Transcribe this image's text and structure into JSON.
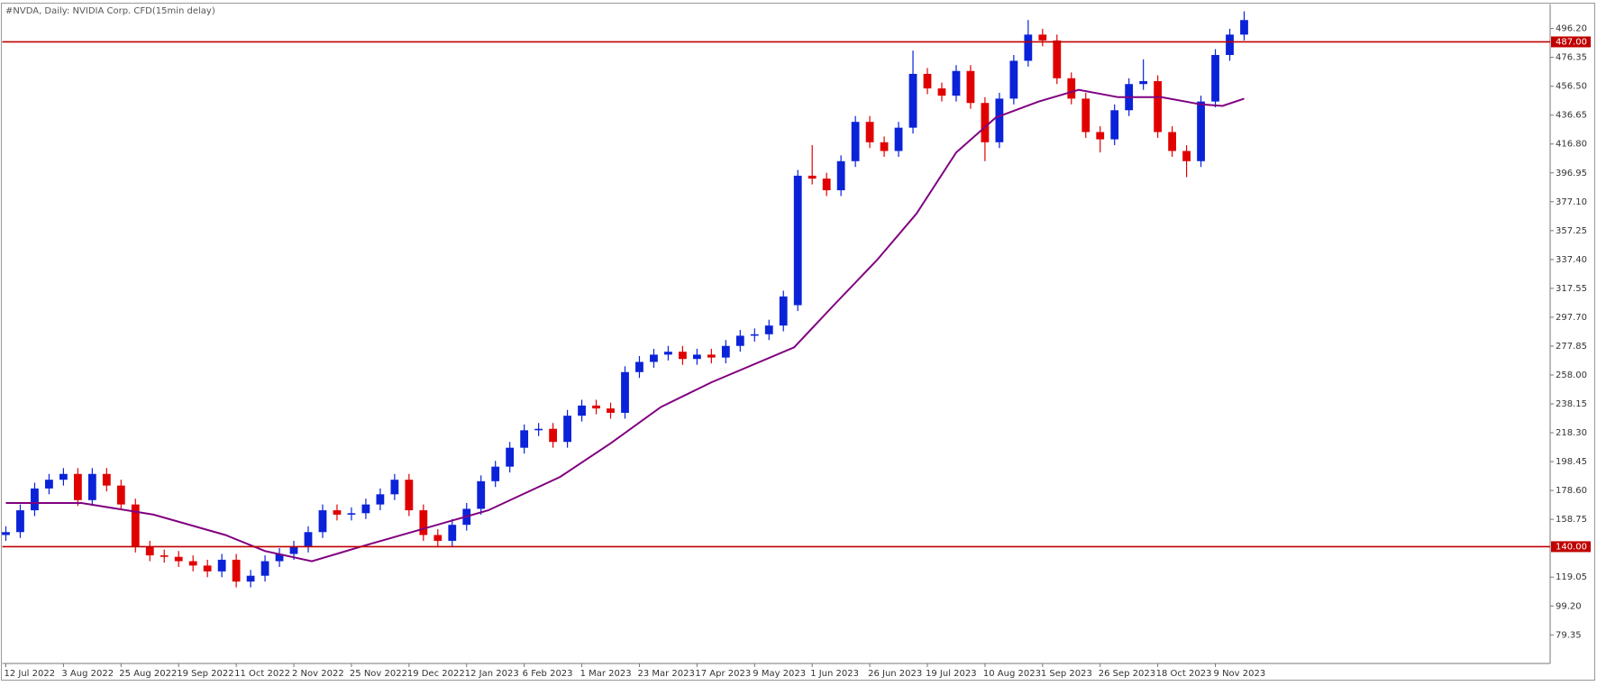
{
  "chart_data": {
    "type": "candlestick",
    "title": "#NVDA, Daily:  NVIDIA Corp. CFD(15min delay)",
    "up_color": "#0a22d8",
    "down_color": "#e00000",
    "xlim": [
      -1,
      429
    ],
    "ylim": [
      59.7,
      513.0
    ],
    "xticks": [
      {
        "value": 0,
        "label": "12 Jul 2022"
      },
      {
        "value": 16,
        "label": "3 Aug 2022"
      },
      {
        "value": 32,
        "label": "25 Aug 2022"
      },
      {
        "value": 48,
        "label": "19 Sep 2022"
      },
      {
        "value": 64,
        "label": "11 Oct 2022"
      },
      {
        "value": 80,
        "label": "2 Nov 2022"
      },
      {
        "value": 96,
        "label": "25 Nov 2022"
      },
      {
        "value": 112,
        "label": "19 Dec 2022"
      },
      {
        "value": 128,
        "label": "12 Jan 2023"
      },
      {
        "value": 144,
        "label": "6 Feb 2023"
      },
      {
        "value": 160,
        "label": "1 Mar 2023"
      },
      {
        "value": 176,
        "label": "23 Mar 2023"
      },
      {
        "value": 192,
        "label": "17 Apr 2023"
      },
      {
        "value": 208,
        "label": "9 May 2023"
      },
      {
        "value": 224,
        "label": "1 Jun 2023"
      },
      {
        "value": 240,
        "label": "26 Jun 2023"
      },
      {
        "value": 256,
        "label": "19 Jul 2023"
      },
      {
        "value": 272,
        "label": "10 Aug 2023"
      },
      {
        "value": 288,
        "label": "1 Sep 2023"
      },
      {
        "value": 304,
        "label": "26 Sep 2023"
      },
      {
        "value": 320,
        "label": "18 Oct 2023"
      },
      {
        "value": 336,
        "label": "9 Nov 2023"
      }
    ],
    "yticks": [
      {
        "value": 496.2,
        "label": "496.20"
      },
      {
        "value": 476.35,
        "label": "476.35"
      },
      {
        "value": 456.5,
        "label": "456.50"
      },
      {
        "value": 436.65,
        "label": "436.65"
      },
      {
        "value": 416.8,
        "label": "416.80"
      },
      {
        "value": 396.95,
        "label": "396.95"
      },
      {
        "value": 377.1,
        "label": "377.10"
      },
      {
        "value": 357.25,
        "label": "357.25"
      },
      {
        "value": 337.4,
        "label": "337.40"
      },
      {
        "value": 317.55,
        "label": "317.55"
      },
      {
        "value": 297.7,
        "label": "297.70"
      },
      {
        "value": 277.85,
        "label": "277.85"
      },
      {
        "value": 258.0,
        "label": "258.00"
      },
      {
        "value": 238.15,
        "label": "238.15"
      },
      {
        "value": 218.3,
        "label": "218.30"
      },
      {
        "value": 198.45,
        "label": "198.45"
      },
      {
        "value": 178.6,
        "label": "178.60"
      },
      {
        "value": 158.75,
        "label": "158.75"
      },
      {
        "value": 119.05,
        "label": "119.05"
      },
      {
        "value": 99.2,
        "label": "99.20"
      },
      {
        "value": 79.35,
        "label": "79.35"
      }
    ],
    "levels": [
      {
        "value": 487,
        "label": "487.00",
        "color": "#c00000"
      },
      {
        "value": 140,
        "label": "140.00",
        "color": "#c00000"
      }
    ],
    "x": [
      0,
      4,
      8,
      12,
      16,
      20,
      24,
      28,
      32,
      36,
      40,
      44,
      48,
      52,
      56,
      60,
      64,
      68,
      72,
      76,
      80,
      84,
      88,
      92,
      96,
      100,
      104,
      108,
      112,
      116,
      120,
      124,
      128,
      132,
      136,
      140,
      144,
      148,
      152,
      156,
      160,
      164,
      168,
      172,
      176,
      180,
      184,
      188,
      192,
      196,
      200,
      204,
      208,
      212,
      216,
      220,
      224,
      228,
      232,
      236,
      240,
      244,
      248,
      252,
      256,
      260,
      264,
      268,
      272,
      276,
      280,
      284,
      288,
      292,
      296,
      300,
      304,
      308,
      312,
      316,
      320,
      324,
      328,
      332,
      336,
      340,
      344
    ],
    "open": [
      148,
      150,
      165,
      180,
      186,
      190,
      172,
      190,
      182,
      169,
      140,
      134,
      133,
      130,
      127,
      123,
      131,
      116,
      120,
      130,
      135,
      140,
      150,
      165,
      162,
      163,
      169,
      176,
      186,
      165,
      148,
      144,
      155,
      166,
      185,
      195,
      208,
      220,
      221,
      212,
      230,
      237,
      235,
      232,
      260,
      267,
      272,
      274,
      269,
      272,
      270,
      278,
      285,
      286,
      292,
      306,
      395,
      393,
      385,
      405,
      432,
      418,
      412,
      428,
      465,
      455,
      450,
      467,
      445,
      418,
      448,
      474,
      492,
      488,
      462,
      448,
      425,
      420,
      440,
      458,
      460,
      425,
      412,
      405,
      446,
      478,
      492
    ],
    "high": [
      154,
      169,
      184,
      190,
      194,
      194,
      194,
      194,
      186,
      173,
      144,
      138,
      137,
      134,
      131,
      135,
      135,
      124,
      134,
      139,
      144,
      154,
      169,
      169,
      167,
      173,
      180,
      190,
      190,
      169,
      152,
      159,
      170,
      189,
      199,
      212,
      224,
      225,
      225,
      234,
      241,
      241,
      239,
      264,
      271,
      276,
      278,
      278,
      276,
      276,
      282,
      289,
      290,
      296,
      316,
      399,
      416,
      397,
      409,
      436,
      436,
      422,
      432,
      481,
      469,
      459,
      471,
      471,
      449,
      452,
      478,
      502,
      496,
      492,
      466,
      452,
      429,
      444,
      462,
      475,
      464,
      429,
      416,
      450,
      482,
      496,
      508
    ],
    "low": [
      144,
      146,
      161,
      176,
      182,
      168,
      168,
      178,
      165,
      136,
      130,
      129,
      126,
      123,
      119,
      119,
      112,
      112,
      116,
      126,
      131,
      136,
      146,
      158,
      158,
      159,
      165,
      172,
      161,
      144,
      140,
      140,
      151,
      162,
      181,
      191,
      204,
      216,
      208,
      208,
      226,
      231,
      228,
      228,
      256,
      263,
      268,
      265,
      265,
      266,
      266,
      274,
      281,
      282,
      288,
      302,
      389,
      381,
      381,
      401,
      414,
      408,
      408,
      424,
      451,
      446,
      446,
      441,
      405,
      414,
      444,
      470,
      484,
      458,
      444,
      421,
      411,
      416,
      436,
      454,
      421,
      408,
      394,
      401,
      442,
      474,
      488
    ],
    "close": [
      150,
      165,
      180,
      186,
      190,
      172,
      190,
      182,
      169,
      140,
      134,
      133,
      130,
      127,
      123,
      131,
      116,
      120,
      130,
      135,
      140,
      150,
      165,
      162,
      163,
      169,
      176,
      186,
      165,
      148,
      144,
      155,
      166,
      185,
      195,
      208,
      220,
      221,
      212,
      230,
      237,
      235,
      232,
      260,
      267,
      272,
      274,
      269,
      272,
      270,
      278,
      285,
      286,
      292,
      312,
      395,
      393,
      385,
      405,
      432,
      418,
      412,
      428,
      465,
      455,
      450,
      467,
      445,
      418,
      448,
      474,
      492,
      488,
      462,
      448,
      425,
      420,
      440,
      458,
      460,
      425,
      412,
      405,
      446,
      478,
      492,
      502
    ],
    "ma": {
      "color": "#800080",
      "x": [
        0,
        21,
        41,
        61,
        72,
        85,
        100,
        117,
        134,
        154,
        168,
        182,
        196,
        219,
        230,
        242,
        253,
        264,
        275,
        287,
        298,
        309,
        321,
        332,
        338,
        344
      ],
      "values": [
        170,
        170,
        162,
        148,
        137,
        130,
        141,
        153,
        165,
        188,
        211,
        236,
        253,
        277,
        306,
        337,
        369,
        411,
        435,
        446,
        454,
        449,
        449,
        444,
        443,
        448
      ]
    }
  }
}
